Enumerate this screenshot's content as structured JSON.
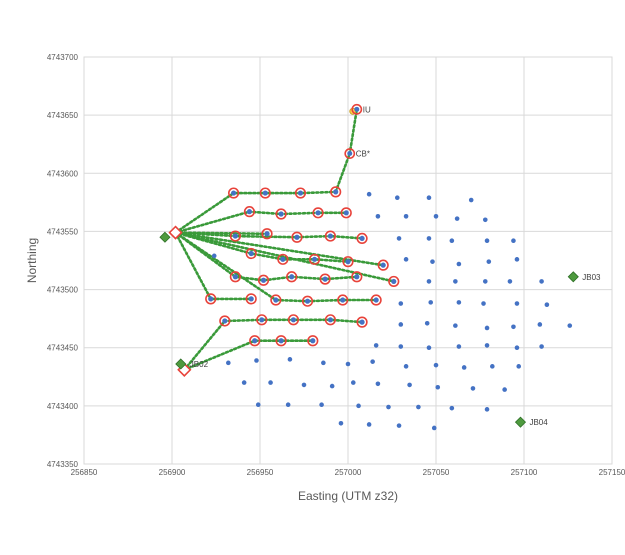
{
  "chart_data": {
    "type": "scatter",
    "xlabel": "Easting (UTM z32)",
    "ylabel": "Northing",
    "xlim": [
      256850,
      257150
    ],
    "ylim": [
      4743350,
      4743700
    ],
    "x_ticks": [
      256850,
      256900,
      256950,
      257000,
      257050,
      257100,
      257150
    ],
    "y_ticks": [
      4743350,
      4743400,
      4743450,
      4743500,
      4743550,
      4743600,
      4743650,
      4743700
    ],
    "grid": true,
    "colors": {
      "grid_point": "#4472c4",
      "node_ring": "#e8423a",
      "cable": "#3a9a3a",
      "jb_fill": "#4e9a3e",
      "jb_stroke": "#2e6f27",
      "label": "#404040",
      "axis_text": "#595959"
    },
    "grid_points": [
      [
        257012,
        4743582
      ],
      [
        257028,
        4743579
      ],
      [
        257046,
        4743579
      ],
      [
        257070,
        4743577
      ],
      [
        257017,
        4743563
      ],
      [
        257033,
        4743563
      ],
      [
        257050,
        4743563
      ],
      [
        257062,
        4743561
      ],
      [
        257078,
        4743560
      ],
      [
        257029,
        4743544
      ],
      [
        257046,
        4743544
      ],
      [
        257059,
        4743542
      ],
      [
        257079,
        4743542
      ],
      [
        257094,
        4743542
      ],
      [
        257033,
        4743526
      ],
      [
        257048,
        4743524
      ],
      [
        257063,
        4743522
      ],
      [
        257080,
        4743524
      ],
      [
        257096,
        4743526
      ],
      [
        257046,
        4743507
      ],
      [
        257061,
        4743507
      ],
      [
        257078,
        4743507
      ],
      [
        257092,
        4743507
      ],
      [
        257110,
        4743507
      ],
      [
        257030,
        4743488
      ],
      [
        257047,
        4743489
      ],
      [
        257063,
        4743489
      ],
      [
        257077,
        4743488
      ],
      [
        257096,
        4743488
      ],
      [
        257113,
        4743487
      ],
      [
        257030,
        4743470
      ],
      [
        257045,
        4743471
      ],
      [
        257061,
        4743469
      ],
      [
        257079,
        4743467
      ],
      [
        257094,
        4743468
      ],
      [
        257109,
        4743470
      ],
      [
        257126,
        4743469
      ],
      [
        257016,
        4743452
      ],
      [
        257030,
        4743451
      ],
      [
        257046,
        4743450
      ],
      [
        257063,
        4743451
      ],
      [
        257079,
        4743452
      ],
      [
        257096,
        4743450
      ],
      [
        257110,
        4743451
      ],
      [
        256924,
        4743529
      ],
      [
        256932,
        4743437
      ],
      [
        256948,
        4743439
      ],
      [
        256967,
        4743440
      ],
      [
        256986,
        4743437
      ],
      [
        257000,
        4743436
      ],
      [
        257014,
        4743438
      ],
      [
        257033,
        4743434
      ],
      [
        257050,
        4743435
      ],
      [
        257066,
        4743433
      ],
      [
        257082,
        4743434
      ],
      [
        257097,
        4743434
      ],
      [
        256941,
        4743420
      ],
      [
        256956,
        4743420
      ],
      [
        256975,
        4743418
      ],
      [
        256991,
        4743417
      ],
      [
        257003,
        4743420
      ],
      [
        257017,
        4743419
      ],
      [
        257035,
        4743418
      ],
      [
        257051,
        4743416
      ],
      [
        257071,
        4743415
      ],
      [
        257089,
        4743414
      ],
      [
        256949,
        4743401
      ],
      [
        256966,
        4743401
      ],
      [
        256985,
        4743401
      ],
      [
        257006,
        4743400
      ],
      [
        257023,
        4743399
      ],
      [
        257040,
        4743399
      ],
      [
        257059,
        4743398
      ],
      [
        257079,
        4743397
      ],
      [
        256996,
        4743385
      ],
      [
        257012,
        4743384
      ],
      [
        257029,
        4743383
      ],
      [
        257049,
        4743381
      ]
    ],
    "turbine_nodes": [
      [
        256935,
        4743583
      ],
      [
        256953,
        4743583
      ],
      [
        256973,
        4743583
      ],
      [
        256993,
        4743584
      ],
      [
        256944,
        4743567
      ],
      [
        256962,
        4743565
      ],
      [
        256983,
        4743566
      ],
      [
        256999,
        4743566
      ],
      [
        256936,
        4743546
      ],
      [
        256954,
        4743548
      ],
      [
        256971,
        4743545
      ],
      [
        256990,
        4743546
      ],
      [
        257008,
        4743544
      ],
      [
        256945,
        4743531
      ],
      [
        256963,
        4743526
      ],
      [
        256981,
        4743526
      ],
      [
        257000,
        4743524
      ],
      [
        257020,
        4743521
      ],
      [
        256936,
        4743511
      ],
      [
        256952,
        4743508
      ],
      [
        256968,
        4743511
      ],
      [
        256987,
        4743509
      ],
      [
        257005,
        4743511
      ],
      [
        257026,
        4743507
      ],
      [
        256922,
        4743492
      ],
      [
        256945,
        4743492
      ],
      [
        256959,
        4743491
      ],
      [
        256977,
        4743490
      ],
      [
        256997,
        4743491
      ],
      [
        257016,
        4743491
      ],
      [
        256930,
        4743473
      ],
      [
        256951,
        4743474
      ],
      [
        256969,
        4743474
      ],
      [
        256990,
        4743474
      ],
      [
        257008,
        4743472
      ],
      [
        256947,
        4743456
      ],
      [
        256962,
        4743456
      ],
      [
        256980,
        4743456
      ]
    ],
    "substation": [
      256902,
      4743549
    ],
    "substation_2": [
      256907,
      4743431
    ],
    "labeled_points": [
      {
        "label": "IU",
        "x": 257005,
        "y": 4743655
      },
      {
        "label": "CB*",
        "x": 257001,
        "y": 4743617
      }
    ],
    "junction_boxes": [
      {
        "label": "",
        "x": 256896,
        "y": 4743545
      },
      {
        "label": "JB02",
        "x": 256905,
        "y": 4743436
      },
      {
        "label": "JB03",
        "x": 257128,
        "y": 4743511
      },
      {
        "label": "JB04",
        "x": 257098,
        "y": 4743386
      }
    ]
  }
}
